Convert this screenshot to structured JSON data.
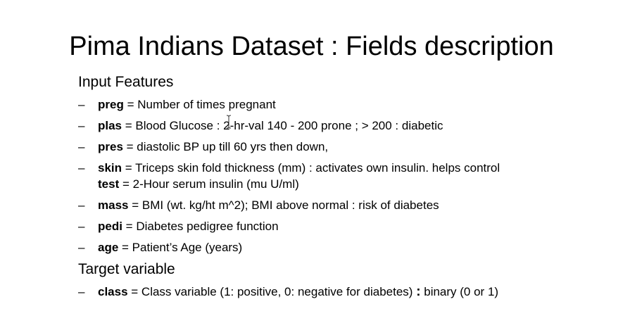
{
  "title": "Pima Indians Dataset : Fields description",
  "input_features": {
    "heading": "Input Features",
    "items": [
      {
        "name": "preg",
        "desc": " = Number of times pregnant"
      },
      {
        "name": "plas",
        "desc": " = Blood Glucose : 2-hr-val 140 - 200  prone ; > 200 : diabetic"
      },
      {
        "name": "pres",
        "desc": " = diastolic BP up till 60 yrs then down,"
      },
      {
        "name": "skin",
        "desc": " = Triceps skin fold thickness (mm) : activates own insulin. helps control",
        "name2": "test",
        "desc2": " = 2-Hour serum insulin (mu U/ml)"
      },
      {
        "name": "mass",
        "desc": " = BMI (wt. kg/ht m^2); BMI above normal : risk of diabetes"
      },
      {
        "name": "pedi",
        "desc": " = Diabetes pedigree function"
      },
      {
        "name": "age",
        "desc": " =  Patient’s Age (years)"
      }
    ]
  },
  "target_variable": {
    "heading": "Target variable",
    "items": [
      {
        "name": "class",
        "desc": " = Class variable (1: positive, 0: negative for diabetes) ",
        "sep": ":",
        "desc_after": " binary (0 or 1)"
      }
    ]
  },
  "bullet": "–",
  "icons": {
    "cursor": "text-cursor-icon"
  }
}
